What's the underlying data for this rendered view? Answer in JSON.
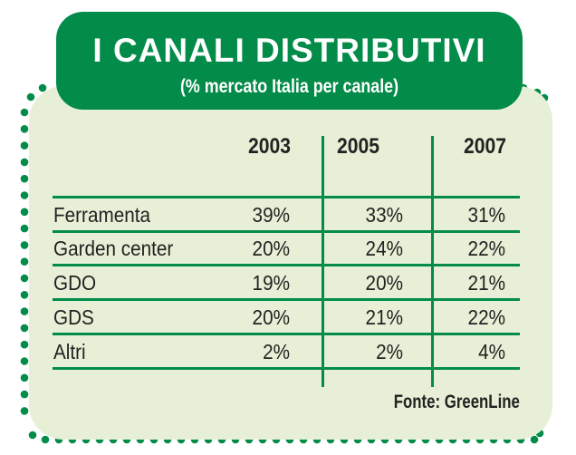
{
  "header": {
    "title": "I CANALI DISTRIBUTIVI",
    "subtitle": "(% mercato Italia per canale)"
  },
  "table": {
    "columns": [
      "2003",
      "2005",
      "2007"
    ],
    "rows": [
      {
        "label": "Ferramenta",
        "values": [
          "39%",
          "33%",
          "31%"
        ]
      },
      {
        "label": "Garden center",
        "values": [
          "20%",
          "24%",
          "22%"
        ]
      },
      {
        "label": "GDO",
        "values": [
          "19%",
          "20%",
          "21%"
        ]
      },
      {
        "label": "GDS",
        "values": [
          "20%",
          "21%",
          "22%"
        ]
      },
      {
        "label": "Altri",
        "values": [
          "2%",
          "2%",
          "4%"
        ]
      }
    ]
  },
  "source": "Fonte: GreenLine",
  "colors": {
    "accent": "#038c49",
    "panel": "#e7f0d6"
  }
}
